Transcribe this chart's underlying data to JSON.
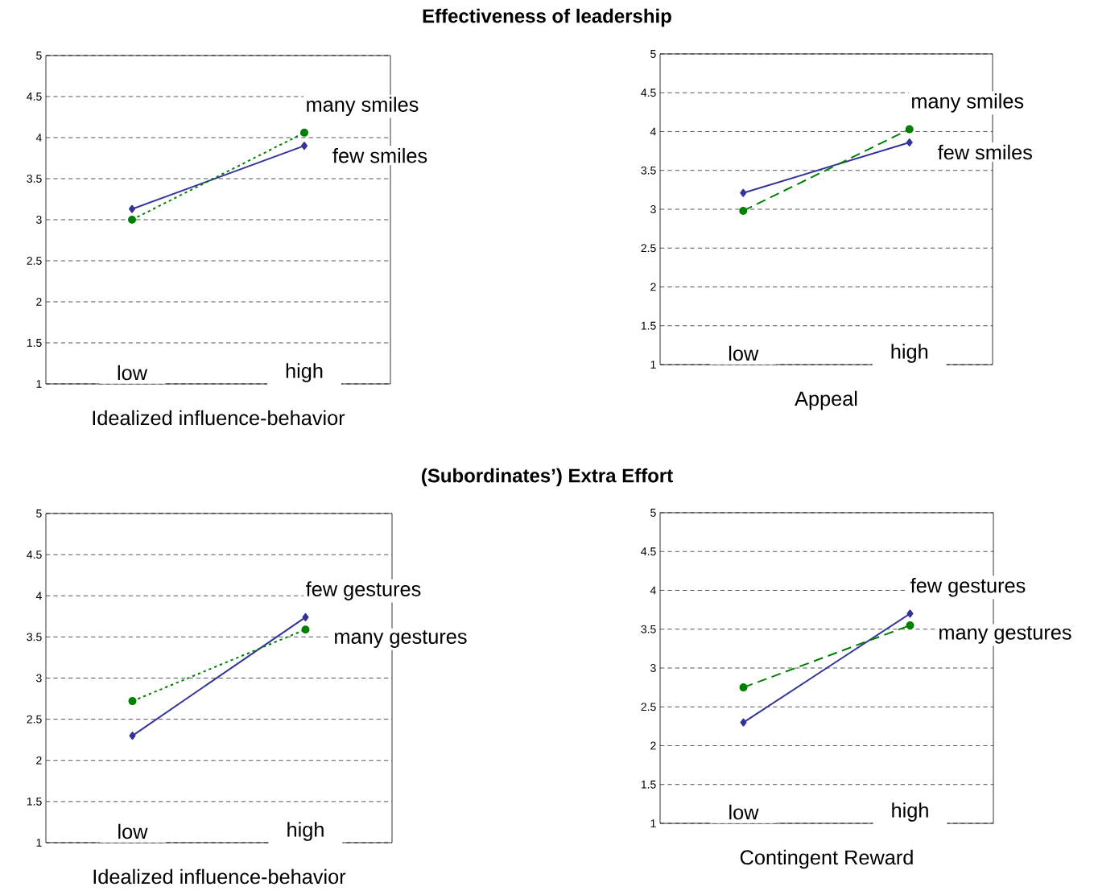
{
  "chart_data": [
    {
      "type": "line",
      "annotations": [
        "Effectiveness of leadership"
      ],
      "xlabel": "Idealized influence-behavior",
      "categories": [
        "low",
        "high"
      ],
      "ylim": [
        1,
        5
      ],
      "yticks": [
        1,
        1.5,
        2,
        2.5,
        3,
        3.5,
        4,
        4.5,
        5
      ],
      "grid": "y",
      "series": [
        {
          "name": "few smiles",
          "color": "#333399",
          "values": [
            3.13,
            3.9
          ],
          "marker": "diamond",
          "line_style": "solid"
        },
        {
          "name": "many smiles",
          "color": "#008000",
          "values": [
            3.0,
            4.06
          ],
          "marker": "circle",
          "line_style": "dotted"
        }
      ]
    },
    {
      "type": "line",
      "xlabel": "Appeal",
      "categories": [
        "low",
        "high"
      ],
      "ylim": [
        1,
        5
      ],
      "yticks": [
        1,
        1.5,
        2,
        2.5,
        3,
        3.5,
        4,
        4.5,
        5
      ],
      "grid": "y",
      "series": [
        {
          "name": "few smiles",
          "color": "#333399",
          "values": [
            3.21,
            3.86
          ],
          "marker": "diamond",
          "line_style": "solid"
        },
        {
          "name": "many smiles",
          "color": "#008000",
          "values": [
            2.98,
            4.03
          ],
          "marker": "circle",
          "line_style": "dashed"
        }
      ]
    },
    {
      "type": "line",
      "annotations": [
        "(Subordinates’) Extra Effort"
      ],
      "xlabel": "Idealized influence-behavior",
      "categories": [
        "low",
        "high"
      ],
      "ylim": [
        1,
        5
      ],
      "yticks": [
        1,
        1.5,
        2,
        2.5,
        3,
        3.5,
        4,
        4.5,
        5
      ],
      "grid": "y",
      "series": [
        {
          "name": "few gestures",
          "color": "#333399",
          "values": [
            2.3,
            3.74
          ],
          "marker": "diamond",
          "line_style": "solid"
        },
        {
          "name": "many gestures",
          "color": "#008000",
          "values": [
            2.72,
            3.59
          ],
          "marker": "circle",
          "line_style": "dotted"
        }
      ]
    },
    {
      "type": "line",
      "xlabel": "Contingent Reward",
      "categories": [
        "low",
        "high"
      ],
      "ylim": [
        1,
        5
      ],
      "yticks": [
        1,
        1.5,
        2,
        2.5,
        3,
        3.5,
        4,
        4.5,
        5
      ],
      "grid": "y",
      "series": [
        {
          "name": "few gestures",
          "color": "#333399",
          "values": [
            2.3,
            3.7
          ],
          "marker": "diamond",
          "line_style": "solid"
        },
        {
          "name": "many gestures",
          "color": "#008000",
          "values": [
            2.75,
            3.55
          ],
          "marker": "circle",
          "line_style": "dashed"
        }
      ]
    }
  ]
}
